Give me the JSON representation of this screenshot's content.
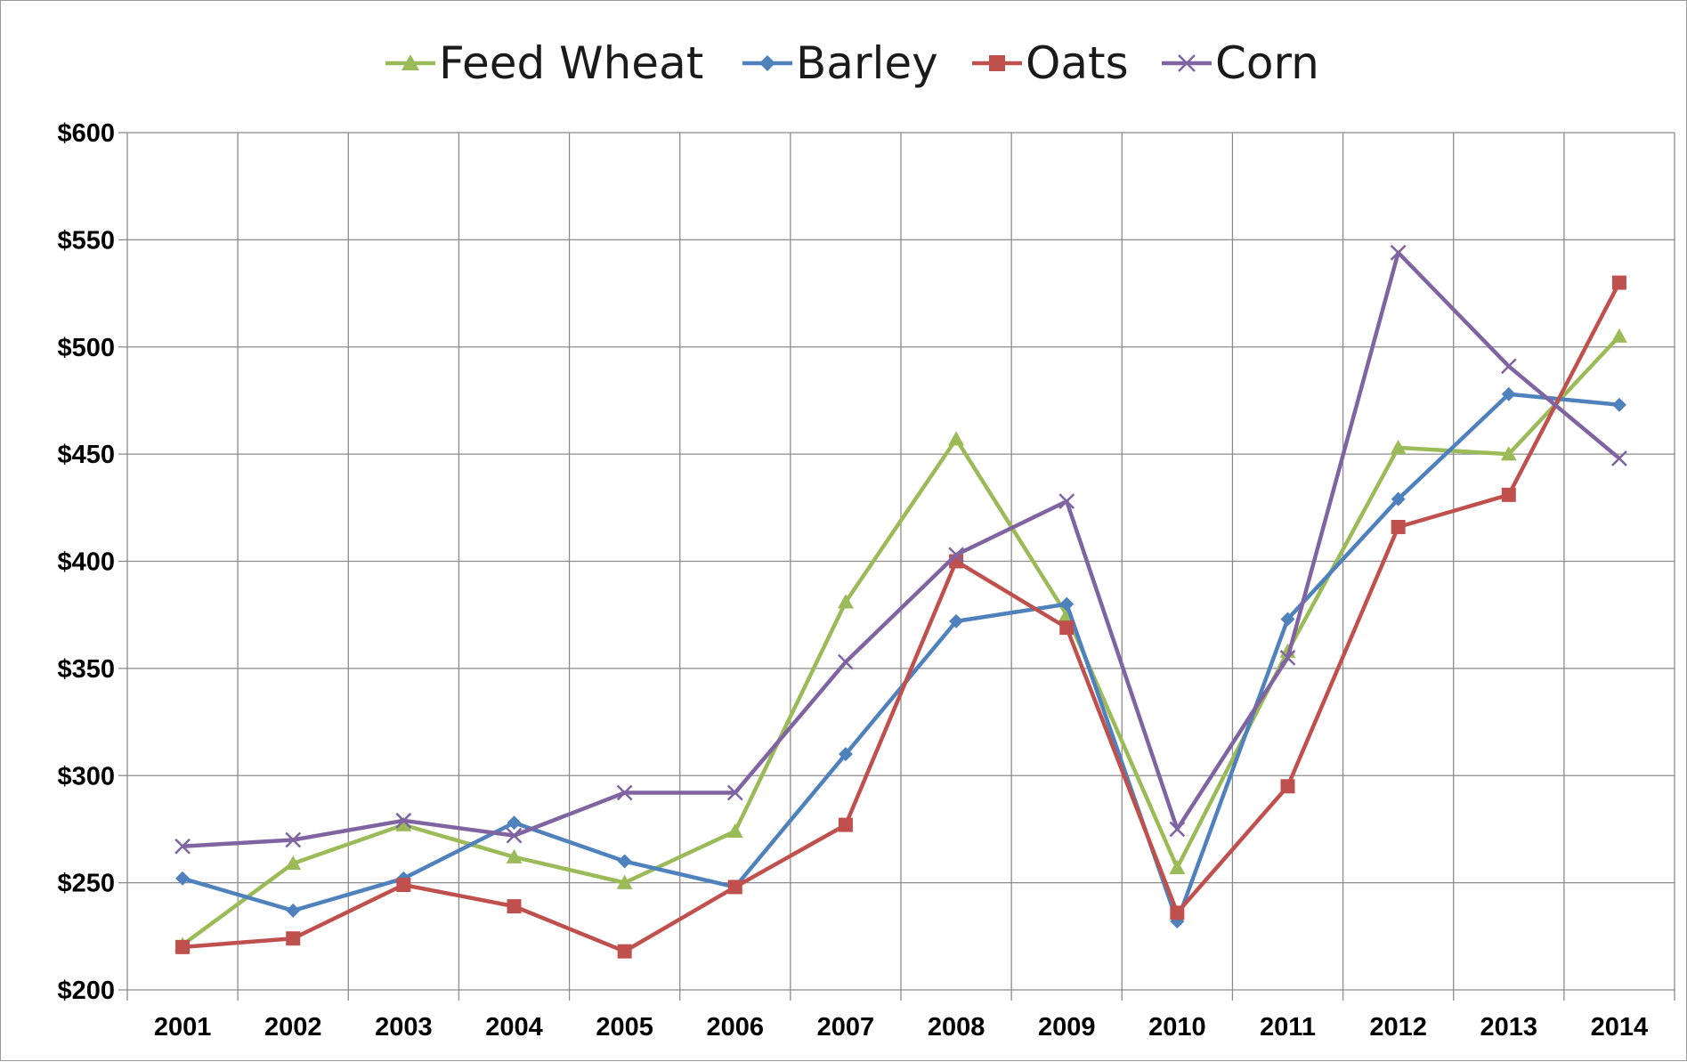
{
  "chart_data": {
    "type": "line",
    "title": "",
    "xlabel": "",
    "ylabel": "",
    "categories": [
      "2001",
      "2002",
      "2003",
      "2004",
      "2005",
      "2006",
      "2007",
      "2008",
      "2009",
      "2010",
      "2011",
      "2012",
      "2013",
      "2014"
    ],
    "ylim": [
      200,
      600
    ],
    "y_ticks": [
      200,
      250,
      300,
      350,
      400,
      450,
      500,
      550,
      600
    ],
    "y_tick_labels": [
      "$200",
      "$250",
      "$300",
      "$350",
      "$400",
      "$450",
      "$500",
      "$550",
      "$600"
    ],
    "grid": true,
    "legend_position": "top",
    "series": [
      {
        "name": "Feed Wheat",
        "color": "#9bbb59",
        "marker": "triangle",
        "values": [
          221,
          259,
          277,
          262,
          250,
          274,
          381,
          457,
          375,
          257,
          358,
          453,
          450,
          505
        ]
      },
      {
        "name": "Barley",
        "color": "#4f81bd",
        "marker": "diamond",
        "values": [
          252,
          237,
          252,
          278,
          260,
          248,
          310,
          372,
          380,
          232,
          373,
          429,
          478,
          473
        ]
      },
      {
        "name": "Oats",
        "color": "#c0504d",
        "marker": "square",
        "values": [
          220,
          224,
          249,
          239,
          218,
          248,
          277,
          400,
          369,
          236,
          295,
          416,
          431,
          530
        ]
      },
      {
        "name": "Corn",
        "color": "#8064a2",
        "marker": "x",
        "values": [
          267,
          270,
          279,
          272,
          292,
          292,
          353,
          403,
          428,
          275,
          355,
          544,
          491,
          448
        ]
      }
    ]
  }
}
